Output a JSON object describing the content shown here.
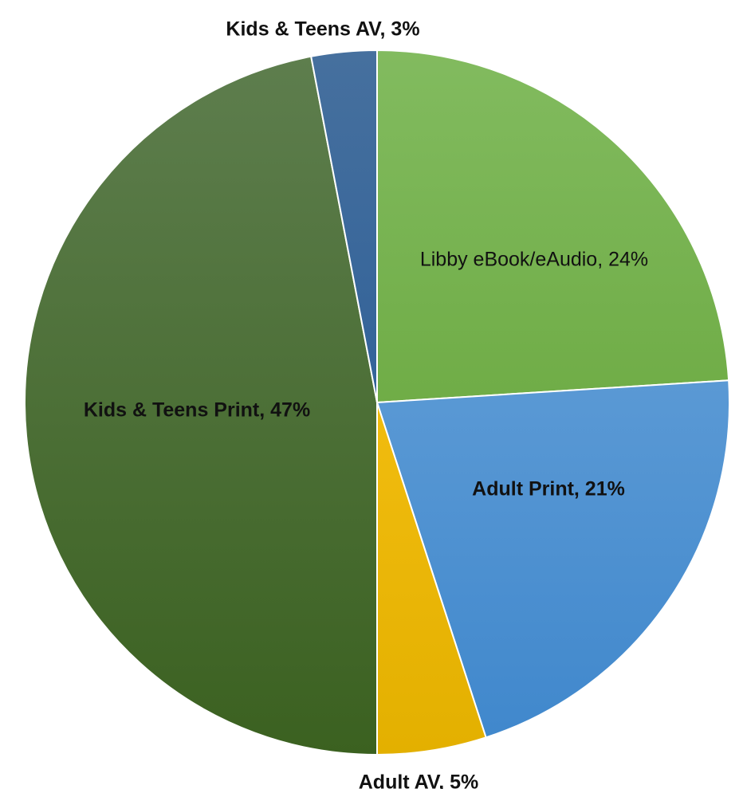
{
  "chart_data": {
    "type": "pie",
    "title": "",
    "start_angle_deg": 0,
    "direction": "clockwise",
    "slices": [
      {
        "label": "Libby eBook/eAudio",
        "value": 24,
        "display": "Libby eBook/eAudio, 24%",
        "color_light": "#82bb5f",
        "color_dark": "#5d9e2e",
        "bold": false,
        "label_position": "inside"
      },
      {
        "label": "Adult Print",
        "value": 21,
        "display": "Adult Print, 21%",
        "color_light": "#72a9dc",
        "color_dark": "#3f87cc",
        "bold": true,
        "label_position": "inside"
      },
      {
        "label": "Adult AV",
        "value": 5,
        "display": "Adult AV, 5%",
        "color_light": "#ffc81e",
        "color_dark": "#e3b000",
        "bold": true,
        "label_position": "outside"
      },
      {
        "label": "Kids & Teens Print",
        "value": 47,
        "display": "Kids & Teens Print, 47%",
        "color_light": "#5e7e4e",
        "color_dark": "#3b6120",
        "bold": true,
        "label_position": "inside"
      },
      {
        "label": "Kids & Teens AV",
        "value": 3,
        "display": "Kids & Teens AV, 3%",
        "color_light": "#46709e",
        "color_dark": "#1f5594",
        "bold": true,
        "label_position": "outside"
      }
    ],
    "legend": "none",
    "units": "%"
  }
}
